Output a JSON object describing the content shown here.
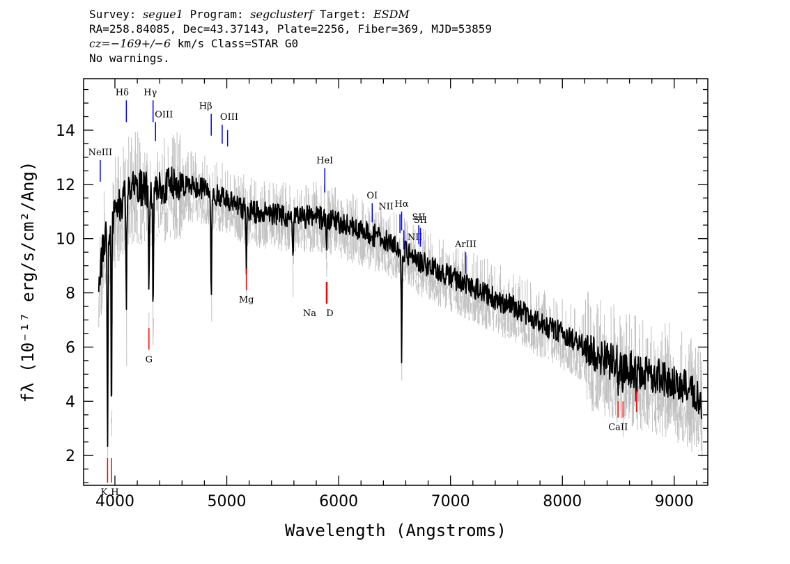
{
  "header": {
    "line1": {
      "survey_label": "Survey: ",
      "survey": "segue1",
      "program_label": " Program: ",
      "program": "segclusterf",
      "target_label": " Target: ",
      "target": "ESDM"
    },
    "line2": "RA=258.84085, Dec=43.37143, Plate=2256, Fiber=369, MJD=53859",
    "line3": {
      "cz_label": "cz=",
      "cz_value": "−169+/−6",
      "rest": " km/s Class=STAR G0"
    },
    "line4": "No warnings."
  },
  "chart_data": {
    "type": "line",
    "xlabel": "Wavelength (Angstroms)",
    "ylabel": "fλ (10⁻¹⁷ erg/s/cm²/Ang)",
    "xlim": [
      3720,
      9300
    ],
    "ylim": [
      0.9,
      15.9
    ],
    "x_ticks": [
      4000,
      5000,
      6000,
      7000,
      8000,
      9000
    ],
    "y_ticks": [
      2,
      4,
      6,
      8,
      10,
      12,
      14
    ],
    "grid": false,
    "colors": {
      "flux": "#000000",
      "error": "#c0c0c0",
      "emission": "#0000ff",
      "absorption": "#ff0000"
    },
    "continuum": {
      "x": [
        3860,
        3900,
        3950,
        4000,
        4050,
        4100,
        4150,
        4200,
        4300,
        4400,
        4500,
        4600,
        4700,
        4800,
        4900,
        5000,
        5100,
        5200,
        5400,
        5600,
        5800,
        6000,
        6200,
        6400,
        6600,
        6800,
        7000,
        7200,
        7400,
        7600,
        7800,
        8000,
        8200,
        8400,
        8600,
        8800,
        9000,
        9200,
        9250
      ],
      "y": [
        8.5,
        9.8,
        10.3,
        10.9,
        11.3,
        11.6,
        11.8,
        11.9,
        11.8,
        11.9,
        12.0,
        12.0,
        11.9,
        11.8,
        11.6,
        11.4,
        11.2,
        11.0,
        10.9,
        10.8,
        10.8,
        10.6,
        10.3,
        10.0,
        9.5,
        9.0,
        8.6,
        8.2,
        7.8,
        7.4,
        6.9,
        6.5,
        6.0,
        5.5,
        5.2,
        5.0,
        4.7,
        4.2,
        4.0
      ]
    },
    "absorption_features": [
      {
        "x": 3934,
        "y": 2.3
      },
      {
        "x": 3969,
        "y": 3.0
      },
      {
        "x": 4102,
        "y": 7.2
      },
      {
        "x": 4304,
        "y": 7.8
      },
      {
        "x": 4341,
        "y": 7.4
      },
      {
        "x": 4861,
        "y": 7.5
      },
      {
        "x": 5175,
        "y": 9.0
      },
      {
        "x": 5591,
        "y": 9.0
      },
      {
        "x": 5893,
        "y": 9.5
      },
      {
        "x": 6563,
        "y": 5.7
      },
      {
        "x": 8498,
        "y": 4.6
      },
      {
        "x": 8542,
        "y": 4.5
      },
      {
        "x": 8662,
        "y": 4.4
      }
    ],
    "emission_lines": [
      {
        "label": "NeIII",
        "x": 3869,
        "y_bottom": 12.1,
        "y_top": 12.9
      },
      {
        "label": "Hδ",
        "x": 4102,
        "y_bottom": 14.3,
        "y_top": 15.1
      },
      {
        "label": "Hγ",
        "x": 4341,
        "y_bottom": 14.3,
        "y_top": 15.1
      },
      {
        "label": "OIII",
        "x": 4363,
        "y_bottom": 13.6,
        "y_top": 14.3
      },
      {
        "label": "Hβ",
        "x": 4861,
        "y_bottom": 13.8,
        "y_top": 14.6
      },
      {
        "label": "OIII",
        "x": 4959,
        "y_bottom": 13.5,
        "y_top": 14.2
      },
      {
        "label": "OIII",
        "x": 5007,
        "y_bottom": 13.4,
        "y_top": 14.0
      },
      {
        "label": "HeI",
        "x": 5876,
        "y_bottom": 11.7,
        "y_top": 12.6
      },
      {
        "label": "OI",
        "x": 6300,
        "y_bottom": 10.6,
        "y_top": 11.3
      },
      {
        "label": "NII",
        "x": 6548,
        "y_bottom": 10.2,
        "y_top": 10.9
      },
      {
        "label": "Hα",
        "x": 6563,
        "y_bottom": 10.3,
        "y_top": 11.0
      },
      {
        "label": "NII",
        "x": 6583,
        "y_bottom": 9.6,
        "y_top": 10.3
      },
      {
        "label": "SII",
        "x": 6716,
        "y_bottom": 9.8,
        "y_top": 10.5
      },
      {
        "label": "SII",
        "x": 6731,
        "y_bottom": 9.7,
        "y_top": 10.4
      },
      {
        "label": "ArIII",
        "x": 7136,
        "y_bottom": 8.7,
        "y_top": 9.5
      }
    ],
    "absorption_lines": [
      {
        "label": "K",
        "x": 3934,
        "y_bottom": 1.0,
        "y_top": 1.9
      },
      {
        "label": "H",
        "x": 3969,
        "y_bottom": 1.0,
        "y_top": 1.9
      },
      {
        "label": "G",
        "x": 4304,
        "y_bottom": 5.9,
        "y_top": 6.7
      },
      {
        "label": "Mg",
        "x": 5175,
        "y_bottom": 8.1,
        "y_top": 8.9
      },
      {
        "label": "Na",
        "x": 5890,
        "y_bottom": 7.6,
        "y_top": 8.4
      },
      {
        "label": "D",
        "x": 5896,
        "y_bottom": 7.6,
        "y_top": 8.4
      },
      {
        "label": "CaII",
        "x": 8498,
        "y_bottom": 3.4,
        "y_top": 4.0
      },
      {
        "label": "CaII",
        "x": 8542,
        "y_bottom": 3.4,
        "y_top": 4.0
      },
      {
        "label": "CaII",
        "x": 8662,
        "y_bottom": 3.6,
        "y_top": 4.4
      }
    ]
  }
}
